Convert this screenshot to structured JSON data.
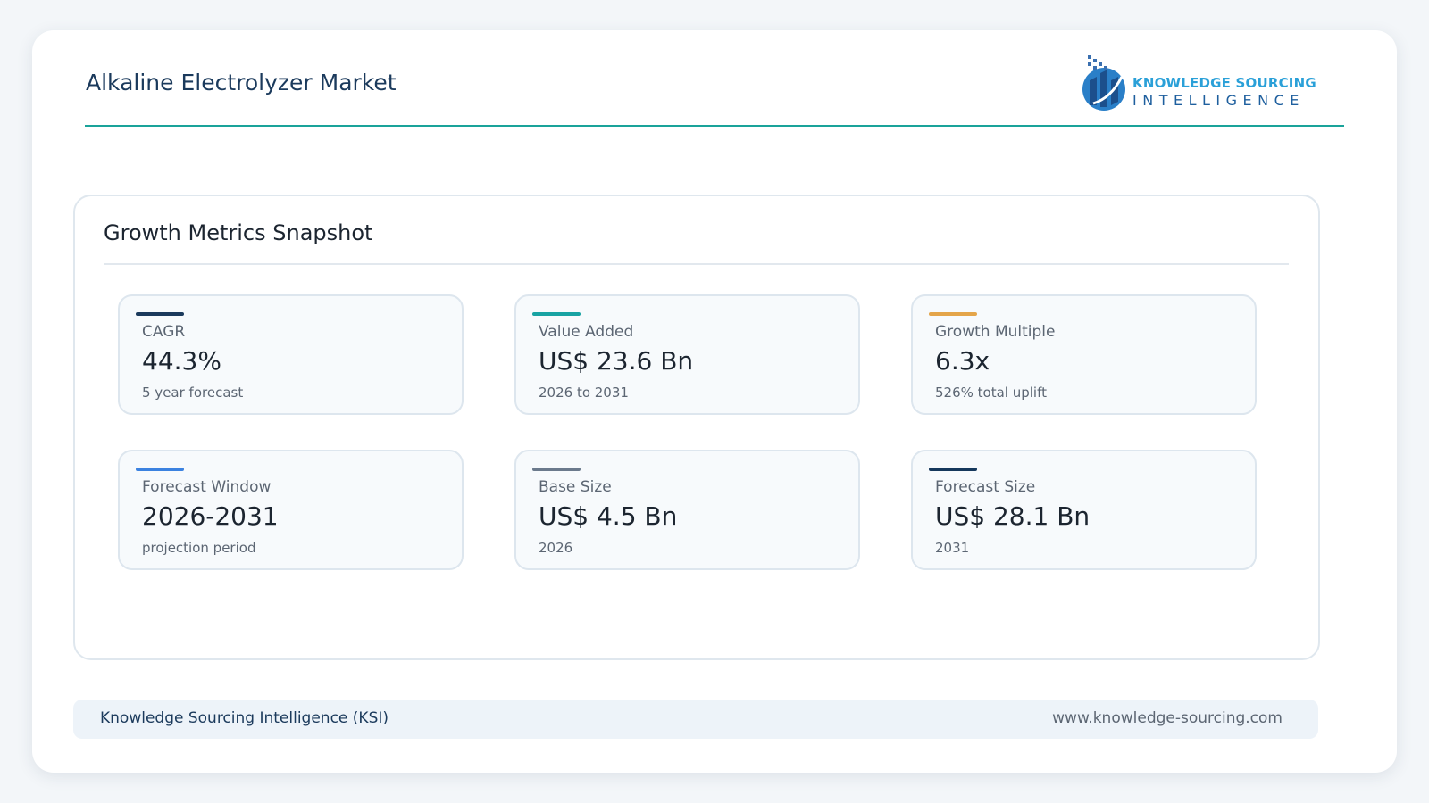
{
  "header": {
    "title": "Alkaline Electrolyzer Market",
    "logo": {
      "line1": "KNOWLEDGE SOURCING",
      "line2": "INTELLIGENCE"
    }
  },
  "panel": {
    "title": "Growth Metrics Snapshot",
    "metrics": [
      {
        "label": "CAGR",
        "value": "44.3%",
        "note": "5 year forecast",
        "color": "#1b3a5c"
      },
      {
        "label": "Value Added",
        "value": "US$ 23.6 Bn",
        "note": "2026 to 2031",
        "color": "#18a3a3"
      },
      {
        "label": "Growth Multiple",
        "value": "6.3x",
        "note": "526% total uplift",
        "color": "#e4a54a"
      },
      {
        "label": "Forecast Window",
        "value": "2026-2031",
        "note": "projection period",
        "color": "#3b82e0"
      },
      {
        "label": "Base Size",
        "value": "US$ 4.5 Bn",
        "note": "2026",
        "color": "#6b7a8c"
      },
      {
        "label": "Forecast Size",
        "value": "US$ 28.1 Bn",
        "note": "2031",
        "color": "#15385c"
      }
    ]
  },
  "footer": {
    "left": "Knowledge Sourcing Intelligence (KSI)",
    "right": "www.knowledge-sourcing.com"
  }
}
